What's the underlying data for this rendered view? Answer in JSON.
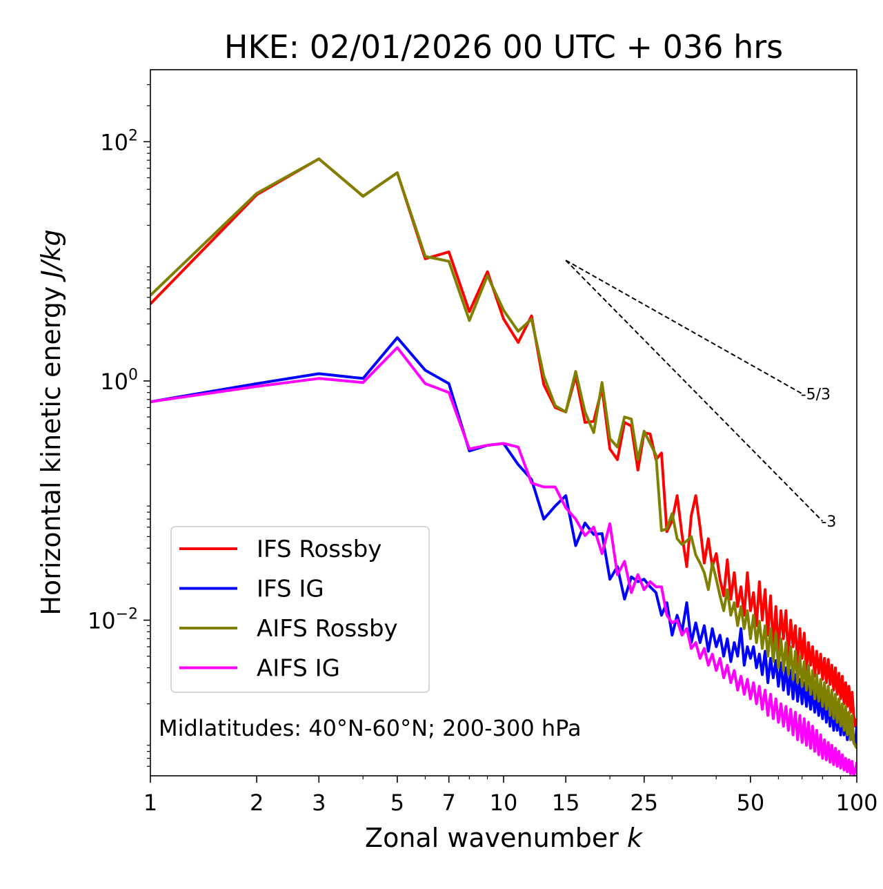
{
  "chart_data": {
    "type": "line",
    "title": "HKE: 02/01/2026 00 UTC + 036 hrs",
    "xlabel": "Zonal wavenumber ",
    "xlabel_italic": "k",
    "ylabel": "Horizontal kinetic energy ",
    "ylabel_italic": "J/kg",
    "xscale": "log",
    "yscale": "log",
    "xlim": [
      1,
      100
    ],
    "ylim": [
      0.0005,
      400
    ],
    "x_ticks": [
      1,
      2,
      3,
      5,
      7,
      10,
      15,
      25,
      50,
      100
    ],
    "x_tick_labels": [
      "1",
      "2",
      "3",
      "5",
      "7",
      "10",
      "15",
      "25",
      "50",
      "100"
    ],
    "y_ticks": [
      {
        "value": 100,
        "base": "10",
        "exp": "2"
      },
      {
        "value": 1,
        "base": "10",
        "exp": "0",
        "label": "10"
      },
      {
        "value": 0.01,
        "base": "10",
        "exp": "−2"
      }
    ],
    "annotation": "Midlatitudes: 40°N-60°N; 200-300 hPa",
    "legend_position": "lower-left",
    "series": [
      {
        "name": "IFS Rossby",
        "color": "#ff0000",
        "values": [
          4.4,
          36,
          72,
          35,
          55,
          10.5,
          12,
          3.8,
          8.2,
          3.3,
          2.1,
          3.5,
          0.93,
          0.6,
          0.55,
          1.1,
          0.45,
          0.46,
          0.87,
          0.27,
          0.22,
          0.45,
          0.42,
          0.18,
          0.37,
          0.36,
          0.22,
          0.25,
          0.055,
          0.068,
          0.11,
          0.052,
          0.028,
          0.075,
          0.11,
          0.06,
          0.03,
          0.048,
          0.028,
          0.036,
          0.022,
          0.016,
          0.032,
          0.015,
          0.025,
          0.013,
          0.019,
          0.011,
          0.025,
          0.012,
          0.017,
          0.009,
          0.021,
          0.01,
          0.018,
          0.0075,
          0.016,
          0.006,
          0.013,
          0.0055,
          0.012,
          0.007,
          0.012,
          0.0048,
          0.01,
          0.006,
          0.009,
          0.0042,
          0.0085,
          0.0048,
          0.0078,
          0.0038,
          0.0065,
          0.0042,
          0.006,
          0.0034,
          0.0055,
          0.0036,
          0.0052,
          0.0032,
          0.0048,
          0.003,
          0.0047,
          0.0029,
          0.0042,
          0.0026,
          0.004,
          0.0024,
          0.0036,
          0.0022,
          0.0034,
          0.002,
          0.003,
          0.0019,
          0.0028,
          0.0017,
          0.0025,
          0.0016,
          0.0013,
          0.0015
        ]
      },
      {
        "name": "IFS IG",
        "color": "#0000ff",
        "values": [
          0.67,
          0.95,
          1.15,
          1.05,
          2.3,
          1.23,
          0.95,
          0.26,
          0.29,
          0.3,
          0.2,
          0.15,
          0.07,
          0.09,
          0.11,
          0.042,
          0.065,
          0.052,
          0.053,
          0.022,
          0.028,
          0.015,
          0.023,
          0.021,
          0.022,
          0.019,
          0.017,
          0.011,
          0.014,
          0.0075,
          0.011,
          0.008,
          0.014,
          0.0065,
          0.0095,
          0.0065,
          0.009,
          0.0055,
          0.0085,
          0.006,
          0.0075,
          0.005,
          0.007,
          0.0045,
          0.0065,
          0.005,
          0.0085,
          0.0042,
          0.006,
          0.0048,
          0.006,
          0.004,
          0.0052,
          0.0035,
          0.0055,
          0.003,
          0.0048,
          0.0033,
          0.0046,
          0.0028,
          0.0044,
          0.0026,
          0.004,
          0.0024,
          0.0038,
          0.0022,
          0.0035,
          0.0021,
          0.0032,
          0.002,
          0.003,
          0.0019,
          0.0028,
          0.0018,
          0.0026,
          0.0017,
          0.0024,
          0.0016,
          0.0023,
          0.0015,
          0.0022,
          0.0014,
          0.0021,
          0.0013,
          0.002,
          0.0012,
          0.0019,
          0.0012,
          0.0018,
          0.0011,
          0.0017,
          0.0011,
          0.0016,
          0.001,
          0.0015,
          0.001,
          0.0014,
          0.00095,
          0.0009,
          0.0013
        ]
      },
      {
        "name": "AIFS Rossby",
        "color": "#808000",
        "values": [
          5.2,
          37,
          72,
          35,
          55,
          11,
          10,
          3.2,
          7.6,
          3.9,
          2.6,
          3.3,
          1.1,
          0.62,
          0.55,
          1.2,
          0.55,
          0.37,
          0.97,
          0.33,
          0.28,
          0.5,
          0.48,
          0.22,
          0.38,
          0.3,
          0.24,
          0.056,
          0.058,
          0.078,
          0.048,
          0.043,
          0.046,
          0.05,
          0.035,
          0.03,
          0.025,
          0.018,
          0.03,
          0.022,
          0.016,
          0.012,
          0.018,
          0.011,
          0.014,
          0.009,
          0.013,
          0.0085,
          0.012,
          0.007,
          0.011,
          0.0065,
          0.0098,
          0.0058,
          0.009,
          0.005,
          0.0085,
          0.0045,
          0.0078,
          0.004,
          0.007,
          0.0038,
          0.0065,
          0.0035,
          0.006,
          0.0032,
          0.0055,
          0.003,
          0.005,
          0.0028,
          0.0045,
          0.0026,
          0.0042,
          0.0024,
          0.0038,
          0.0022,
          0.0035,
          0.0021,
          0.0032,
          0.0019,
          0.003,
          0.0018,
          0.0028,
          0.0016,
          0.0026,
          0.0015,
          0.0024,
          0.0014,
          0.0022,
          0.0013,
          0.002,
          0.0012,
          0.0019,
          0.0011,
          0.0017,
          0.001,
          0.0016,
          0.00095,
          0.0009,
          0.00085
        ]
      },
      {
        "name": "AIFS IG",
        "color": "#ff00ff",
        "values": [
          0.67,
          0.9,
          1.05,
          0.97,
          1.9,
          0.95,
          0.8,
          0.27,
          0.29,
          0.3,
          0.28,
          0.14,
          0.13,
          0.13,
          0.087,
          0.07,
          0.051,
          0.06,
          0.036,
          0.064,
          0.024,
          0.031,
          0.017,
          0.024,
          0.018,
          0.021,
          0.019,
          0.019,
          0.011,
          0.0095,
          0.01,
          0.0075,
          0.0085,
          0.0058,
          0.0065,
          0.0048,
          0.0058,
          0.0042,
          0.0052,
          0.0038,
          0.0048,
          0.0033,
          0.0042,
          0.003,
          0.0038,
          0.0026,
          0.0034,
          0.0024,
          0.0032,
          0.0022,
          0.003,
          0.002,
          0.0028,
          0.0018,
          0.0026,
          0.0016,
          0.0024,
          0.0015,
          0.0022,
          0.0014,
          0.002,
          0.0013,
          0.0019,
          0.0012,
          0.0018,
          0.0011,
          0.0017,
          0.001,
          0.0016,
          0.00095,
          0.0015,
          0.0009,
          0.0014,
          0.00085,
          0.0013,
          0.0008,
          0.0012,
          0.00075,
          0.0011,
          0.0007,
          0.001,
          0.00068,
          0.00095,
          0.00065,
          0.0009,
          0.00062,
          0.00085,
          0.0006,
          0.0008,
          0.00058,
          0.00075,
          0.00056,
          0.0007,
          0.00054,
          0.00068,
          0.00052,
          0.00066,
          0.0005,
          0.00055,
          0.00065
        ]
      }
    ],
    "reference_slopes": [
      {
        "label": "-5/3",
        "slope": -1.6667,
        "x_start": 15,
        "y_start": 10.2,
        "x_end": 70
      },
      {
        "label": "-3",
        "slope": -3,
        "x_start": 15,
        "y_start": 10.2,
        "x_end": 80
      }
    ]
  }
}
